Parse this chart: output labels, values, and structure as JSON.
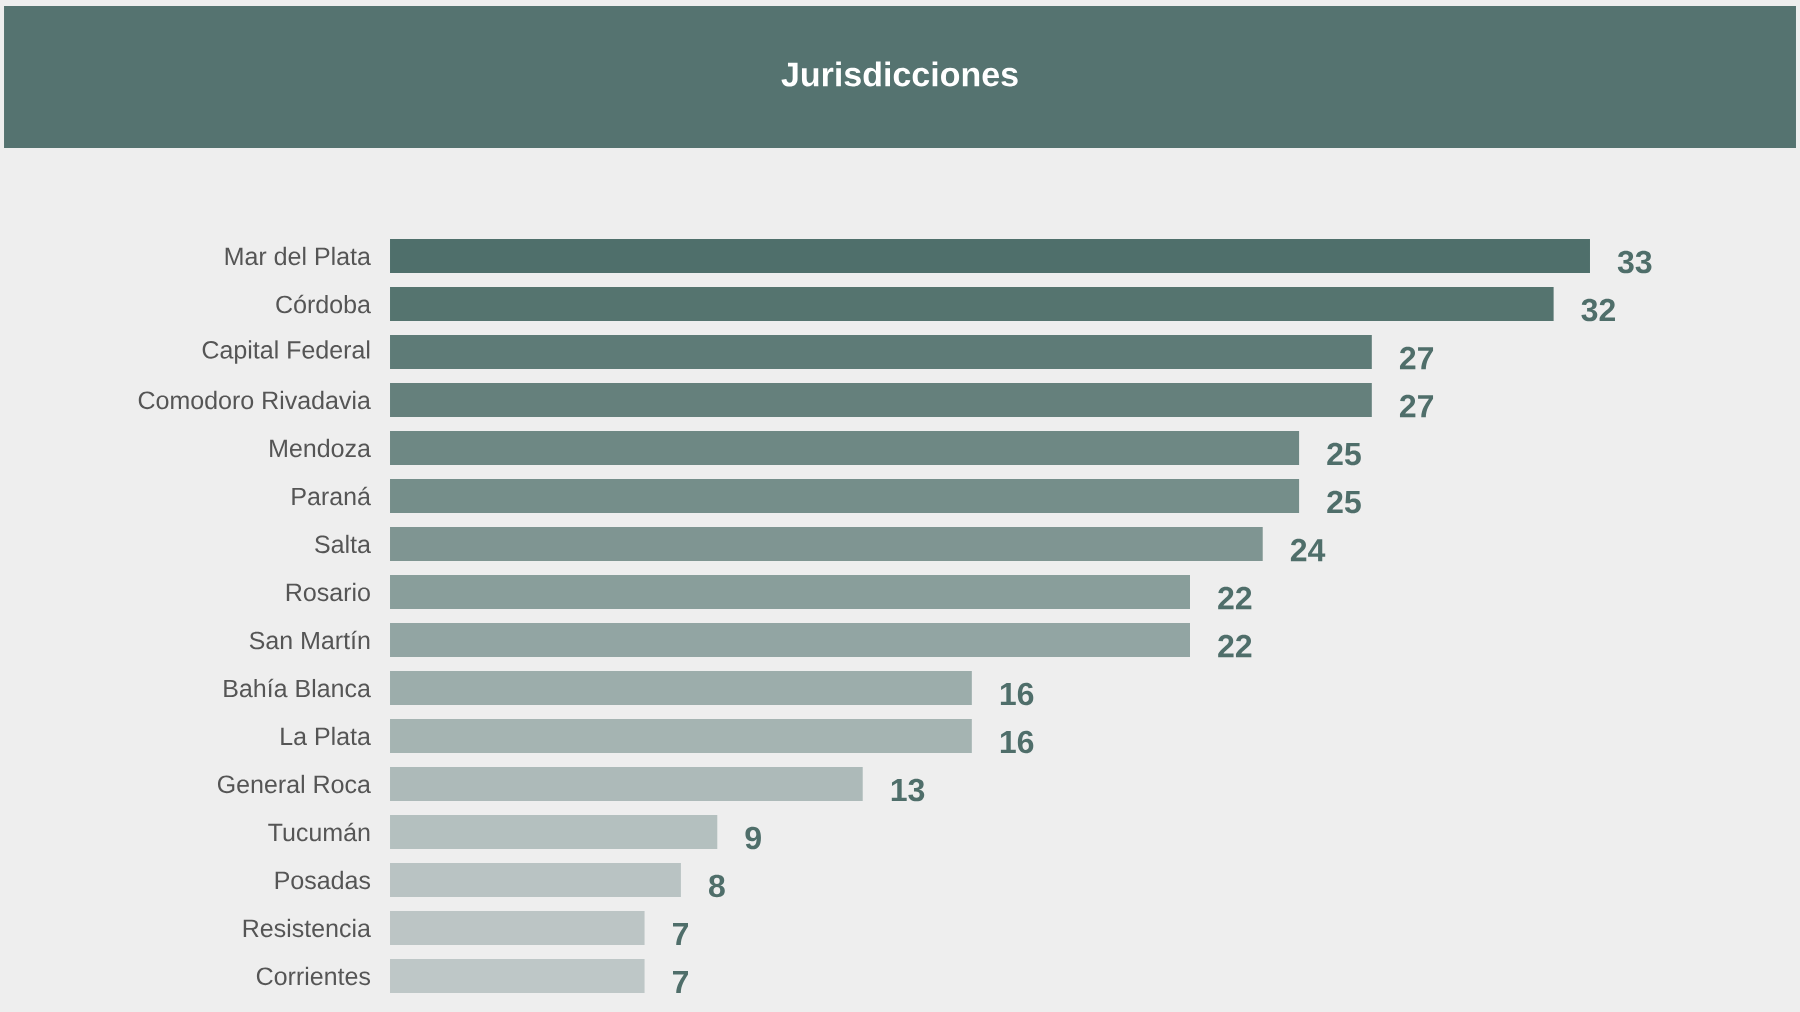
{
  "chart_data": {
    "type": "bar",
    "orientation": "horizontal",
    "title": "Jurisdicciones",
    "categories": [
      "Mar del Plata",
      "Córdoba",
      "Capital Federal",
      "Comodoro Rivadavia",
      "Mendoza",
      "Paraná",
      "Salta",
      "Rosario",
      "San Martín",
      "Bahía Blanca",
      "La Plata",
      "General Roca",
      "Tucumán",
      "Posadas",
      "Resistencia",
      "Corrientes"
    ],
    "values": [
      33,
      32,
      27,
      27,
      25,
      25,
      24,
      22,
      22,
      16,
      16,
      13,
      9,
      8,
      7,
      7
    ],
    "colors": [
      "#4f6f6b",
      "#55746f",
      "#5e7b77",
      "#65807c",
      "#6e8884",
      "#758e8a",
      "#7f9592",
      "#899e9b",
      "#92a5a3",
      "#9cadab",
      "#a5b4b2",
      "#adbab9",
      "#b4c0bf",
      "#b9c3c3",
      "#bcc5c5",
      "#bec7c7"
    ],
    "data_labels": true
  }
}
